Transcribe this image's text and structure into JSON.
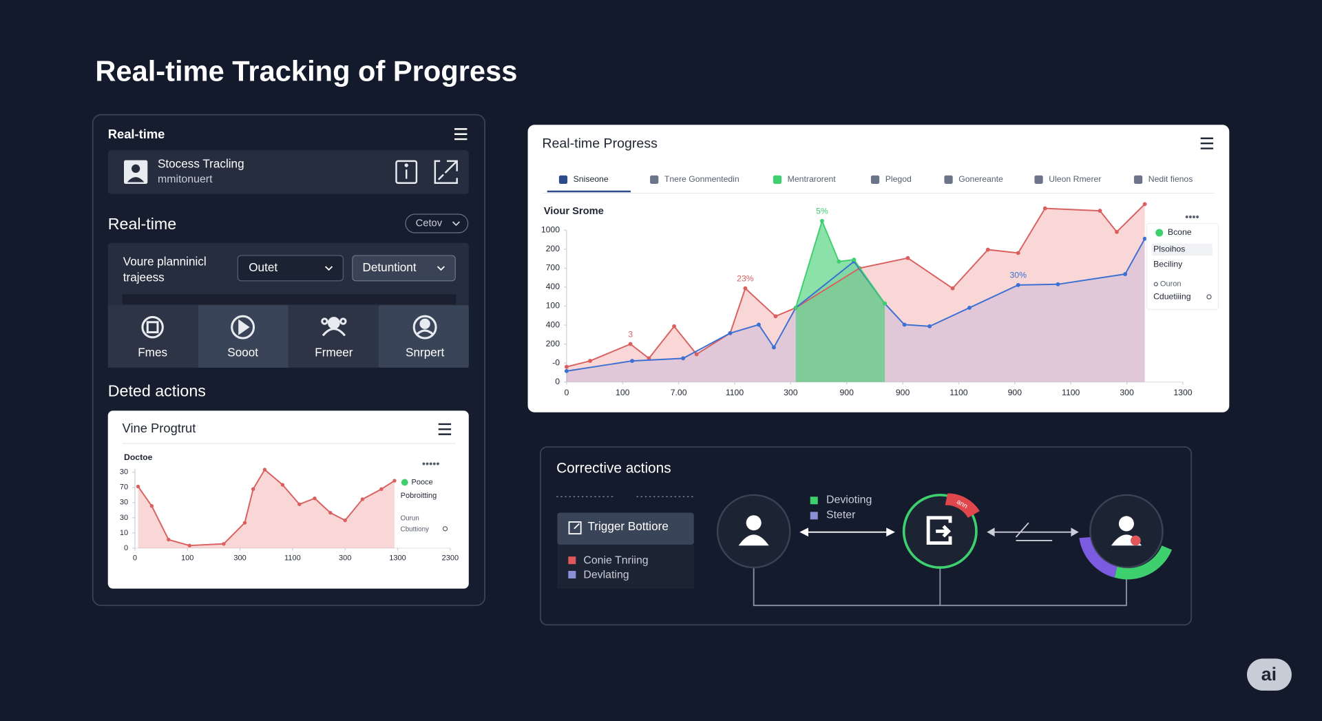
{
  "title": "Real-time Tracking of Progress",
  "left_panel": {
    "header": "Real-time",
    "card": {
      "title": "Stocess Tracling",
      "subtitle": "mmitonuert"
    },
    "section": "Real-time",
    "select": "Cetov",
    "planning": {
      "label_lines": [
        "Voure planninicl",
        "trajeess"
      ],
      "selects": [
        "Outet",
        "Detuntiont"
      ]
    },
    "tiles": [
      "Fmes",
      "Sooot",
      "Frmeer",
      "Snrpert"
    ],
    "actions_heading": "Deted actions"
  },
  "chart_data": [
    {
      "type": "line",
      "title": "Real-time Progress",
      "tabs": [
        "Sniseone",
        "Tnere Gonmentedin",
        "Mentrarorent",
        "Plegod",
        "Gonereante",
        "Uleon Rmerer",
        "Nedit fienos"
      ],
      "ylabel": "Viour Srome",
      "xlim": [
        0,
        11
      ],
      "xticks": [
        0,
        {
          "value": 1,
          "label": "100"
        },
        {
          "value": 2,
          "label": "7.00"
        },
        {
          "value": 3,
          "label": "1100"
        },
        {
          "value": 4,
          "label": "300"
        },
        {
          "value": 5,
          "label": "900"
        },
        {
          "value": 6,
          "label": "900"
        },
        {
          "value": 7,
          "label": "1100"
        },
        {
          "value": 8,
          "label": "900"
        },
        {
          "value": 9,
          "label": "1100"
        },
        {
          "value": 10,
          "label": "300"
        },
        {
          "value": 11,
          "label": "1300"
        }
      ],
      "ylim": [
        0,
        120
      ],
      "yticks": [
        0,
        {
          "value": 12.5,
          "label": "-0"
        },
        {
          "value": 25,
          "label": "200"
        },
        {
          "value": 37.5,
          "label": "400"
        },
        {
          "value": 50,
          "label": "100"
        },
        {
          "value": 62.5,
          "label": "400"
        },
        {
          "value": 75,
          "label": "700"
        },
        {
          "value": 87.5,
          "label": "200"
        },
        {
          "value": 100,
          "label": "1000"
        }
      ],
      "series": [
        {
          "name": "Bcone",
          "color": "#3ecf6e",
          "x": [
            4.09,
            4.56,
            4.86,
            5.13,
            5.68
          ],
          "values": [
            48.9,
            106.1,
            79.4,
            80.6,
            51.7
          ]
        },
        {
          "name": "Plsoihos",
          "color": "#d9605f",
          "x": [
            0,
            0.42,
            1.14,
            1.47,
            1.92,
            2.32,
            2.92,
            3.19,
            3.73,
            4.09,
            5.23,
            6.09,
            6.89,
            7.52,
            8.06,
            8.54,
            9.52,
            9.82,
            10.32
          ],
          "values": [
            10,
            13.9,
            25,
            15.6,
            36.7,
            18.3,
            32.2,
            61.7,
            43.3,
            48.9,
            75,
            81.7,
            61.7,
            87.2,
            85,
            114.4,
            112.8,
            98.9,
            117.2
          ]
        },
        {
          "name": "Beciliny",
          "color": "#3b6fd1",
          "x": [
            0,
            1.17,
            2.08,
            2.92,
            3.43,
            3.7,
            4.09,
            5.13,
            5.68,
            6.03,
            6.48,
            7.19,
            8.06,
            8.77,
            9.97,
            10.32
          ],
          "values": [
            7.2,
            13.9,
            15.6,
            32.2,
            37.8,
            22.8,
            48.9,
            79.4,
            51.7,
            37.8,
            36.7,
            48.9,
            63.9,
            64.4,
            71.1,
            94.4
          ]
        }
      ],
      "annotations": [
        "3",
        "23%",
        "5%",
        "30%"
      ],
      "legend_extra": [
        "Ouron",
        "Cduetiiing"
      ]
    },
    {
      "type": "line",
      "title": "Vine Progtrut",
      "ylabel": "Doctoe",
      "xlim": [
        0,
        6
      ],
      "xticks": [
        0,
        {
          "value": 1,
          "label": "100"
        },
        {
          "value": 2,
          "label": "300"
        },
        {
          "value": 3,
          "label": "1100"
        },
        {
          "value": 4,
          "label": "300"
        },
        {
          "value": 5,
          "label": "1300"
        },
        {
          "value": 6,
          "label": "2300"
        }
      ],
      "ylim": [
        0,
        5.5
      ],
      "yticks": [
        0,
        {
          "value": 1,
          "label": "10"
        },
        {
          "value": 2,
          "label": "30"
        },
        {
          "value": 3,
          "label": "30"
        },
        {
          "value": 4,
          "label": "70"
        },
        {
          "value": 5,
          "label": "30"
        }
      ],
      "series": [
        {
          "name": "Pooce",
          "color": "#d9605f",
          "x": [
            0.06,
            0.32,
            0.64,
            1.04,
            1.69,
            2.09,
            2.25,
            2.47,
            2.81,
            3.13,
            3.42,
            3.72,
            4.0,
            4.33,
            4.69,
            4.94
          ],
          "values": [
            4.06,
            2.78,
            0.56,
            0.17,
            0.28,
            1.67,
            3.89,
            5.17,
            4.17,
            2.89,
            3.28,
            2.33,
            1.83,
            3.22,
            3.89,
            4.44
          ]
        }
      ],
      "legend_extra": [
        "Pobroitting",
        "Ourun",
        "Cbuttiony"
      ]
    }
  ],
  "corrective": {
    "title": "Corrective actions",
    "button": "Trigger Bottiore",
    "list": [
      "Conie Tnriing",
      "Devlating"
    ],
    "legend": [
      "Devioting",
      "Steter"
    ],
    "badge": "ann"
  },
  "logo": "ai"
}
